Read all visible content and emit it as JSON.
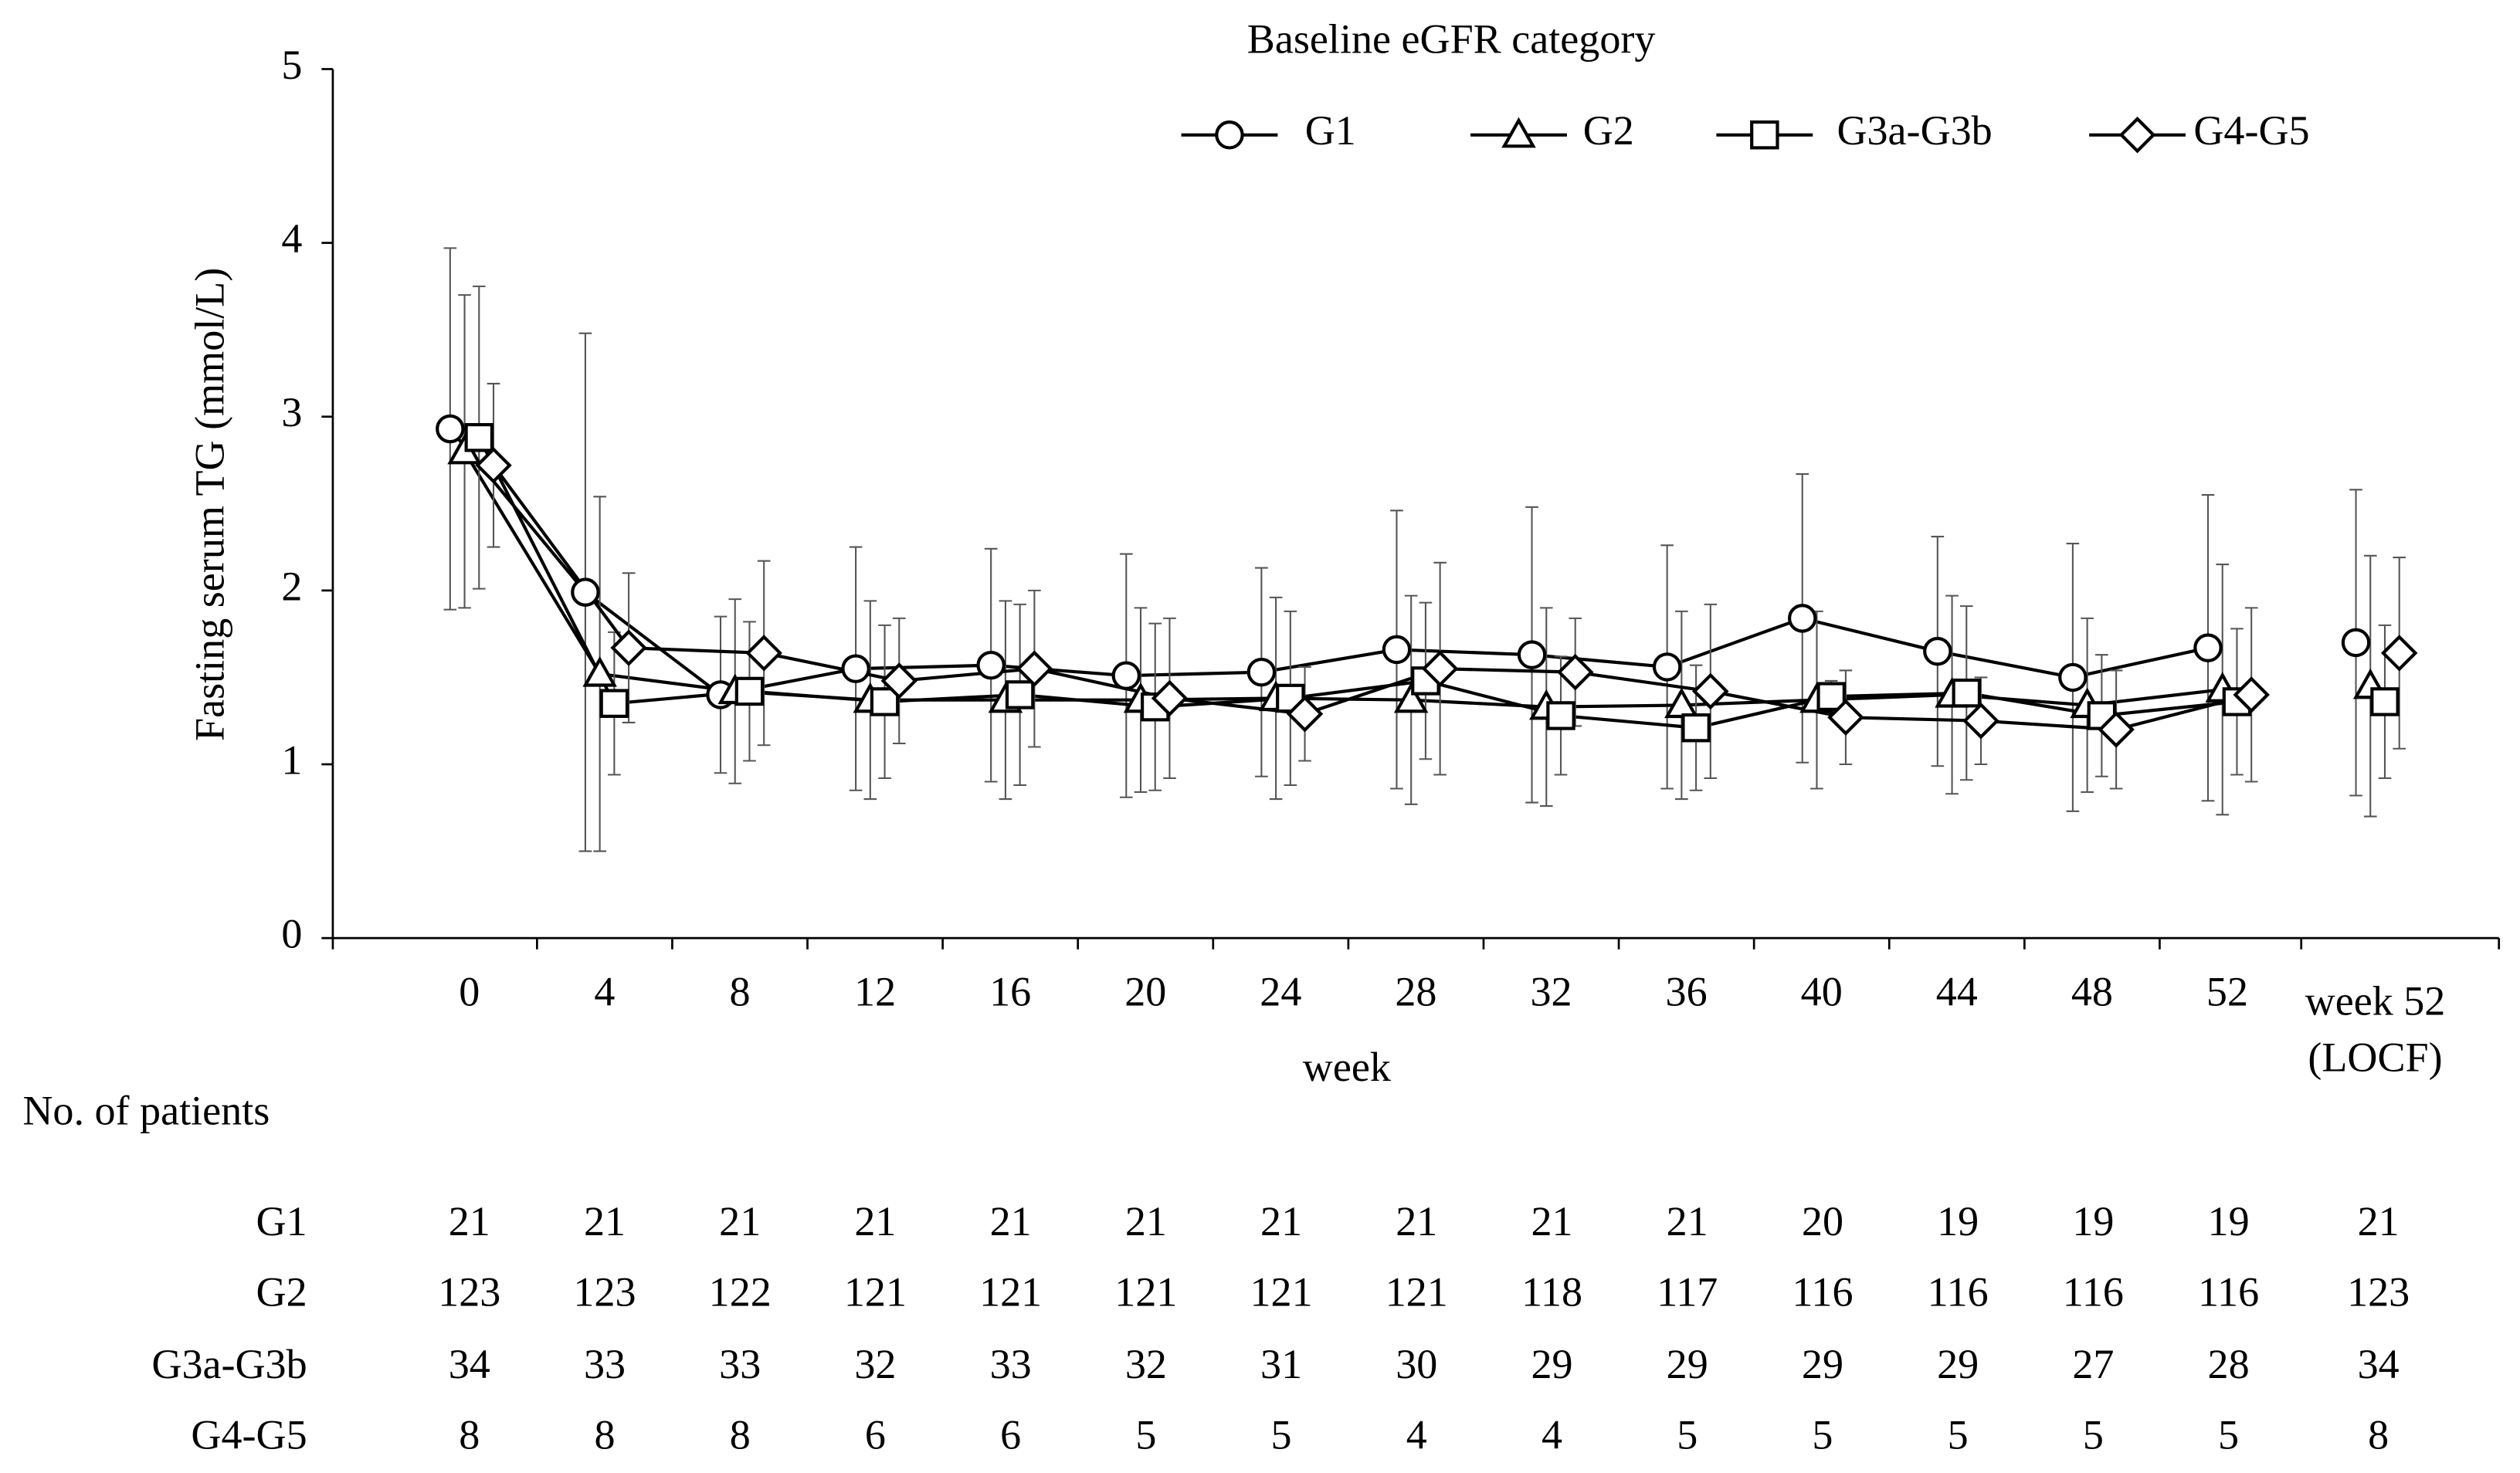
{
  "chart_data": {
    "type": "line",
    "legend_title": "Baseline eGFR category",
    "ylabel": "Fasting serum TG (mmol/L)",
    "xlabel": "week",
    "categories": [
      "0",
      "4",
      "8",
      "12",
      "16",
      "20",
      "24",
      "28",
      "32",
      "36",
      "40",
      "44",
      "48",
      "52",
      "week 52 (LOCF)"
    ],
    "ylim": [
      0,
      5
    ],
    "yticks": [
      0,
      1,
      2,
      3,
      4,
      5
    ],
    "series": [
      {
        "name": "G1",
        "marker": "circle",
        "color": "#000000",
        "values": [
          2.93,
          1.99,
          1.4,
          1.55,
          1.57,
          1.51,
          1.53,
          1.66,
          1.63,
          1.56,
          1.84,
          1.65,
          1.5,
          1.67,
          1.7
        ],
        "errors": [
          1.04,
          1.49,
          0.45,
          0.7,
          0.67,
          0.7,
          0.6,
          0.8,
          0.85,
          0.7,
          0.83,
          0.66,
          0.77,
          0.88,
          0.88
        ]
      },
      {
        "name": "G2",
        "marker": "triangle",
        "color": "#000000",
        "values": [
          2.8,
          1.52,
          1.42,
          1.37,
          1.37,
          1.37,
          1.38,
          1.37,
          1.33,
          1.34,
          1.37,
          1.4,
          1.34,
          1.43,
          1.45
        ],
        "errors": [
          0.9,
          1.02,
          0.53,
          0.57,
          0.57,
          0.53,
          0.58,
          0.6,
          0.57,
          0.54,
          0.51,
          0.57,
          0.5,
          0.72,
          0.75
        ]
      },
      {
        "name": "G3a-G3b",
        "marker": "square",
        "color": "#000000",
        "values": [
          2.88,
          1.35,
          1.42,
          1.36,
          1.4,
          1.33,
          1.38,
          1.48,
          1.28,
          1.21,
          1.39,
          1.41,
          1.28,
          1.36,
          1.36
        ],
        "errors": [
          0.87,
          0.41,
          0.4,
          0.44,
          0.52,
          0.48,
          0.5,
          0.45,
          0.34,
          0.36,
          0.09,
          0.5,
          0.35,
          0.42,
          0.44
        ]
      },
      {
        "name": "G4-G5",
        "marker": "diamond",
        "color": "#000000",
        "values": [
          2.72,
          1.67,
          1.64,
          1.48,
          1.55,
          1.38,
          1.29,
          1.55,
          1.53,
          1.42,
          1.27,
          1.25,
          1.2,
          1.4,
          1.64
        ],
        "errors": [
          0.47,
          0.43,
          0.53,
          0.36,
          0.45,
          0.46,
          0.27,
          0.61,
          0.31,
          0.5,
          0.27,
          0.25,
          0.34,
          0.5,
          0.55
        ]
      }
    ]
  },
  "table": {
    "title": "No. of patients",
    "rows": [
      {
        "name": "G1",
        "values": [
          21,
          21,
          21,
          21,
          21,
          21,
          21,
          21,
          21,
          21,
          20,
          19,
          19,
          19,
          21
        ]
      },
      {
        "name": "G2",
        "values": [
          123,
          123,
          122,
          121,
          121,
          121,
          121,
          121,
          118,
          117,
          116,
          116,
          116,
          116,
          123
        ]
      },
      {
        "name": "G3a-G3b",
        "values": [
          34,
          33,
          33,
          32,
          33,
          32,
          31,
          30,
          29,
          29,
          29,
          29,
          27,
          28,
          34
        ]
      },
      {
        "name": "G4-G5",
        "values": [
          8,
          8,
          8,
          6,
          6,
          5,
          5,
          4,
          4,
          5,
          5,
          5,
          5,
          5,
          8
        ]
      }
    ]
  }
}
